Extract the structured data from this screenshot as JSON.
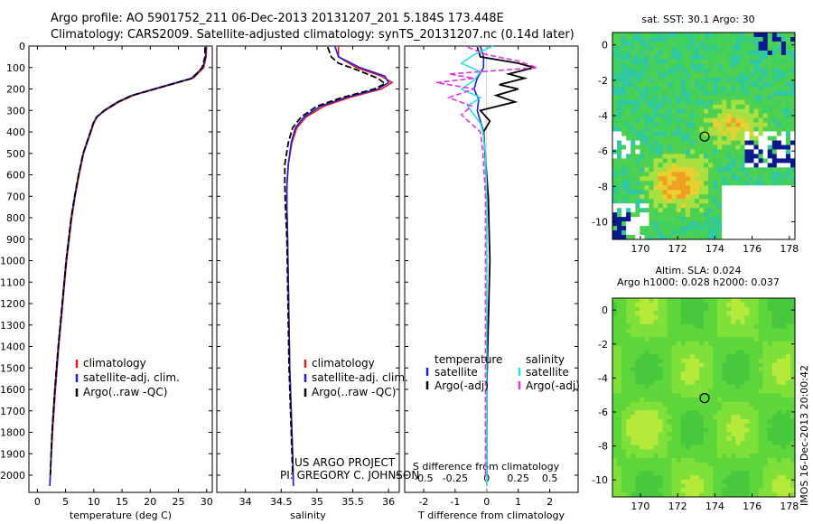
{
  "header": {
    "line1": "Argo profile: AO 5901752_211 06-Dec-2013 20131207_201 5.184S 173.448E",
    "line2": "Climatology: CARS2009. Satellite-adjusted climatology: synTS_20131207.nc (0.14d later)"
  },
  "footer_credit": {
    "line1": "US ARGO PROJECT",
    "line2": "PI: GREGORY C. JOHNSON"
  },
  "side_stamp": "IMOS 16-Dec-2013 20:00:42",
  "colors": {
    "climatology": "#e8161b",
    "satellite": "#1f1fd6",
    "argo": "#000000",
    "sat_s": "#2ee0e8",
    "argo_s": "#e633e0"
  },
  "chart_data": [
    {
      "type": "line",
      "id": "temperature",
      "xlabel": "temperature (deg C)",
      "ylabel": "",
      "xlim": [
        -1.5,
        31
      ],
      "ylim": [
        2080,
        0
      ],
      "xticks": [
        0,
        5,
        10,
        15,
        20,
        25,
        30
      ],
      "yticks": [
        0,
        100,
        200,
        300,
        400,
        500,
        600,
        700,
        800,
        900,
        1000,
        1100,
        1200,
        1300,
        1400,
        1500,
        1600,
        1700,
        1800,
        1900,
        2000
      ],
      "legend": [
        "climatology",
        "satellite-adj. clim.",
        "Argo(..raw -QC)"
      ],
      "series": [
        {
          "name": "climatology",
          "depth": [
            0,
            50,
            100,
            150,
            170,
            200,
            230,
            260,
            300,
            330,
            360,
            400,
            500,
            600,
            700,
            800,
            1000,
            1200,
            1400,
            1600,
            1800,
            2000,
            2050
          ],
          "values": [
            30.0,
            29.9,
            29.5,
            27.6,
            25.0,
            21.0,
            17.0,
            14.5,
            12.0,
            10.6,
            10.0,
            9.5,
            8.2,
            7.4,
            6.7,
            6.1,
            5.2,
            4.5,
            3.8,
            3.2,
            2.7,
            2.3,
            2.2
          ]
        },
        {
          "name": "satellite",
          "depth": [
            0,
            50,
            100,
            150,
            170,
            200,
            230,
            260,
            300,
            330,
            360,
            400,
            500,
            600,
            700,
            800,
            1000,
            1200,
            1400,
            1600,
            1800,
            2000,
            2050
          ],
          "values": [
            29.9,
            29.8,
            29.3,
            27.3,
            24.6,
            20.6,
            16.7,
            14.2,
            11.8,
            10.5,
            9.9,
            9.4,
            8.1,
            7.3,
            6.6,
            6.0,
            5.1,
            4.4,
            3.7,
            3.1,
            2.6,
            2.3,
            2.2
          ]
        },
        {
          "name": "argo",
          "depth": [
            5,
            50,
            100,
            150,
            170,
            200,
            230,
            260,
            300,
            330,
            360,
            400,
            500,
            600,
            700,
            800,
            1000,
            1200,
            1400,
            1600,
            1800,
            2000
          ],
          "values": [
            29.7,
            29.7,
            29.2,
            27.5,
            24.8,
            20.8,
            16.8,
            14.3,
            11.9,
            10.5,
            9.9,
            9.4,
            8.1,
            7.3,
            6.6,
            6.0,
            5.1,
            4.4,
            3.7,
            3.1,
            2.6,
            2.3
          ]
        }
      ]
    },
    {
      "type": "line",
      "id": "salinity",
      "xlabel": "salinity",
      "xlim": [
        33.6,
        36.15
      ],
      "ylim": [
        2080,
        0
      ],
      "xticks": [
        34,
        34.5,
        35,
        35.5,
        36
      ],
      "legend": [
        "climatology",
        "satellite-adj. clim.",
        "Argo(..raw -QC)"
      ],
      "series": [
        {
          "name": "climatology",
          "depth": [
            0,
            50,
            100,
            140,
            170,
            200,
            240,
            280,
            330,
            380,
            450,
            550,
            650,
            750,
            900,
            1100,
            1300,
            1500,
            1700,
            1900,
            2050
          ],
          "values": [
            35.3,
            35.3,
            35.55,
            35.9,
            36.05,
            35.9,
            35.45,
            35.1,
            34.85,
            34.72,
            34.65,
            34.6,
            34.58,
            34.58,
            34.59,
            34.6,
            34.61,
            34.62,
            34.64,
            34.66,
            34.67
          ]
        },
        {
          "name": "satellite",
          "depth": [
            0,
            50,
            100,
            140,
            170,
            200,
            240,
            280,
            330,
            380,
            450,
            550,
            650,
            750,
            900,
            1100,
            1300,
            1500,
            1700,
            1900,
            2050
          ],
          "values": [
            35.25,
            35.3,
            35.6,
            35.95,
            36.0,
            35.85,
            35.4,
            35.05,
            34.82,
            34.7,
            34.64,
            34.6,
            34.58,
            34.58,
            34.59,
            34.6,
            34.61,
            34.62,
            34.64,
            34.66,
            34.67
          ]
        },
        {
          "name": "argo",
          "depth": [
            5,
            50,
            80,
            110,
            150,
            175,
            200,
            240,
            280,
            330,
            380,
            450,
            550,
            650,
            750,
            900,
            1100,
            1300,
            1500,
            1700,
            1900,
            2000
          ],
          "values": [
            35.15,
            35.2,
            35.3,
            35.55,
            35.85,
            35.95,
            35.8,
            35.35,
            35.0,
            34.78,
            34.66,
            34.6,
            34.55,
            34.55,
            34.56,
            34.58,
            34.59,
            34.6,
            34.61,
            34.63,
            34.65,
            34.66
          ]
        }
      ]
    },
    {
      "type": "line",
      "id": "difference",
      "xlabel_top": "S difference from climatology",
      "xlabel": "T difference from climatology",
      "xlim": [
        -2.6,
        2.9
      ],
      "ylim": [
        2080,
        0
      ],
      "xticks_T": [
        -2,
        -1,
        0,
        1,
        2
      ],
      "xticks_S_labels": [
        "-0.5",
        "-0.25",
        "0",
        "0.25",
        "0.5"
      ],
      "xticks_S_values": [
        -0.5,
        -0.25,
        0,
        0.25,
        0.5
      ],
      "legend_T_title": "temperature",
      "legend_S_title": "salinity",
      "legend_T": [
        "satellite",
        "Argo(-adj)"
      ],
      "legend_S": [
        "satellite",
        "Argo(-adj)"
      ],
      "series": [
        {
          "name": "T satellite",
          "color_key": "satellite",
          "dash": false,
          "depth": [
            0,
            50,
            100,
            150,
            200,
            250,
            300,
            350,
            400,
            500,
            700,
            1000,
            1300,
            1600,
            1900,
            2050
          ],
          "values": [
            -0.2,
            -0.1,
            -0.1,
            -0.3,
            -0.4,
            -0.25,
            -0.3,
            -0.2,
            -0.1,
            -0.05,
            0,
            0,
            0,
            0,
            0,
            0
          ]
        },
        {
          "name": "T argo",
          "color_key": "argo",
          "dash": false,
          "depth": [
            5,
            50,
            80,
            100,
            130,
            150,
            180,
            200,
            230,
            260,
            300,
            350,
            400,
            500,
            700,
            1000,
            1300,
            1600,
            1900,
            2000
          ],
          "values": [
            -0.3,
            -0.2,
            1.0,
            1.5,
            0.7,
            1.2,
            0.4,
            1.0,
            0.3,
            0.9,
            -0.2,
            0.1,
            -0.1,
            -0.05,
            0.05,
            0.1,
            0.05,
            0.0,
            0.0,
            0.0
          ]
        },
        {
          "name": "S satellite",
          "color_key": "sat_s",
          "dash": false,
          "depth": [
            0,
            40,
            80,
            120,
            160,
            200,
            240,
            280,
            320,
            360,
            400,
            500,
            700,
            1000,
            1300,
            1600,
            1900,
            2050
          ],
          "values": [
            0.05,
            -0.1,
            -0.2,
            -0.05,
            -0.1,
            -0.2,
            -0.05,
            -0.15,
            -0.1,
            -0.05,
            -0.03,
            -0.01,
            0,
            0,
            0,
            0,
            0,
            0
          ]
        },
        {
          "name": "S argo",
          "color_key": "argo_s",
          "dash": true,
          "depth": [
            5,
            40,
            70,
            100,
            130,
            150,
            170,
            200,
            240,
            280,
            320,
            400,
            500,
            700,
            1000,
            1300,
            1600,
            1900,
            2000
          ],
          "values": [
            -0.15,
            0.0,
            0.25,
            0.4,
            -0.3,
            -0.1,
            -0.4,
            -0.1,
            -0.3,
            -0.12,
            -0.2,
            -0.05,
            -0.03,
            -0.01,
            -0.01,
            -0.01,
            -0.01,
            -0.01,
            -0.01
          ]
        }
      ]
    },
    {
      "type": "heatmap",
      "id": "sst_map",
      "title": "sat. SST: 30.1 Argo: 30",
      "xlim": [
        168.5,
        178.3
      ],
      "ylim": [
        -11,
        0.7
      ],
      "xticks": [
        170,
        172,
        174,
        176,
        178
      ],
      "yticks": [
        0,
        -2,
        -4,
        -6,
        -8,
        -10
      ],
      "marker": {
        "lon": 173.448,
        "lat": -5.184
      }
    },
    {
      "type": "heatmap",
      "id": "sla_map",
      "title_line1": "Altim. SLA: 0.024",
      "title_line2": "Argo h1000: 0.028 h2000: 0.037",
      "xlim": [
        168.5,
        178.3
      ],
      "ylim": [
        -11,
        0.7
      ],
      "xticks": [
        170,
        172,
        174,
        176,
        178
      ],
      "yticks": [
        0,
        -2,
        -4,
        -6,
        -8,
        -10
      ],
      "marker": {
        "lon": 173.448,
        "lat": -5.184
      }
    }
  ]
}
